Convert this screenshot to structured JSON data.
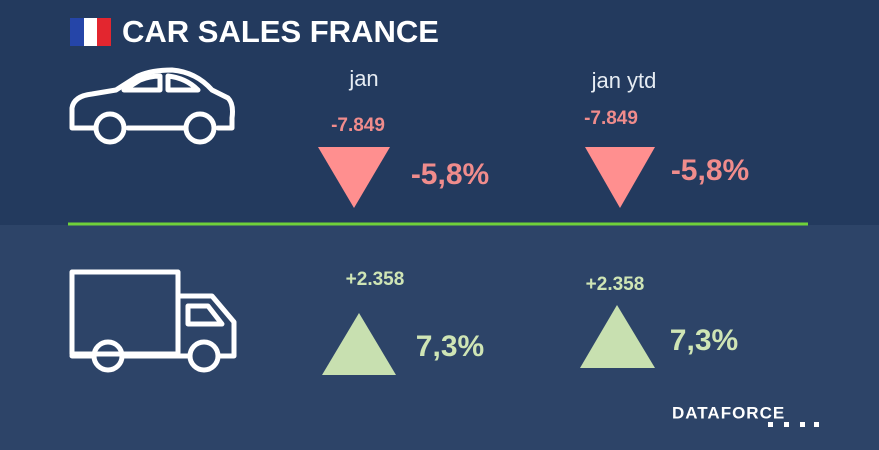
{
  "header": {
    "title": "CAR SALES FRANCE"
  },
  "columns": [
    "jan",
    "jan ytd"
  ],
  "rows": [
    {
      "cells": [
        {
          "change": "-7.849",
          "percent": "-5,8%"
        },
        {
          "change": "-7.849",
          "percent": "-5,8%"
        }
      ]
    },
    {
      "cells": [
        {
          "change": "+2.358",
          "percent": "7,3%"
        },
        {
          "change": "+2.358",
          "percent": "7,3%"
        }
      ]
    }
  ],
  "footer": {
    "logo": "DATAFORCE"
  }
}
